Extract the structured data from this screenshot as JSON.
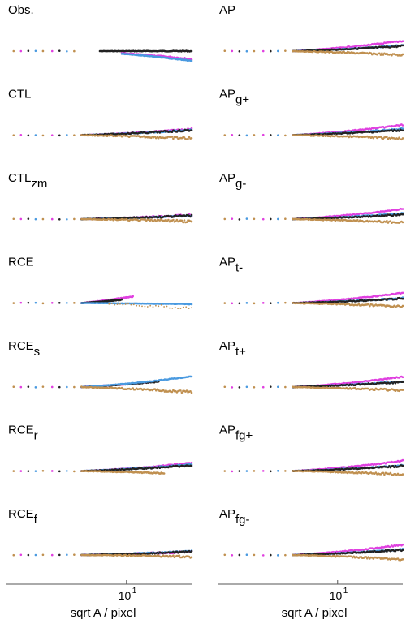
{
  "colors": {
    "black": "#222222",
    "magenta": "#e040e0",
    "blue": "#4a9ae0",
    "tan": "#c09050",
    "axis": "#555555"
  },
  "axes": {
    "xlabel": "sqrt A / pixel",
    "tick_label": "10",
    "tick_exp": "1",
    "x_scale": "log"
  },
  "chart_data": [
    {
      "type": "scatter",
      "name": "Obs.",
      "sub": "",
      "series": [
        {
          "color": "black",
          "shape": "flat",
          "slope": 0.0,
          "from": 0.5,
          "to": 1.0,
          "noise": 0.2
        },
        {
          "color": "magenta",
          "shape": "down",
          "slope": -0.7,
          "from": 0.62,
          "to": 1.0,
          "noise": 0.3,
          "bump": 1.2
        },
        {
          "color": "blue",
          "shape": "down",
          "slope": -0.85,
          "from": 0.62,
          "to": 1.0,
          "noise": 0.2
        }
      ]
    },
    {
      "type": "scatter",
      "name": "AP",
      "sub": "",
      "series": [
        {
          "color": "magenta",
          "slope": 0.9,
          "from": 0.4,
          "to": 1.0,
          "noise": 0.3
        },
        {
          "color": "blue",
          "slope": 0.5,
          "from": 0.4,
          "to": 1.0,
          "noise": 0.3
        },
        {
          "color": "black",
          "slope": 0.45,
          "from": 0.4,
          "to": 1.0,
          "noise": 0.4
        },
        {
          "color": "tan",
          "slope": -0.35,
          "from": 0.4,
          "to": 1.0,
          "noise": 0.5
        }
      ]
    },
    {
      "type": "scatter",
      "name": "CTL",
      "sub": "",
      "series": [
        {
          "color": "magenta",
          "slope": 0.55,
          "from": 0.4,
          "to": 1.0,
          "noise": 0.3
        },
        {
          "color": "blue",
          "slope": 0.45,
          "from": 0.4,
          "to": 1.0,
          "noise": 0.3
        },
        {
          "color": "black",
          "slope": 0.45,
          "from": 0.4,
          "to": 1.0,
          "noise": 0.5
        },
        {
          "color": "tan",
          "slope": -0.3,
          "from": 0.4,
          "to": 1.0,
          "noise": 0.6
        }
      ]
    },
    {
      "type": "scatter",
      "name": "AP",
      "sub": "g+",
      "series": [
        {
          "color": "magenta",
          "slope": 0.9,
          "from": 0.4,
          "to": 1.0,
          "noise": 0.3
        },
        {
          "color": "blue",
          "slope": 0.55,
          "from": 0.4,
          "to": 1.0,
          "noise": 0.3
        },
        {
          "color": "black",
          "slope": 0.45,
          "from": 0.4,
          "to": 1.0,
          "noise": 0.4
        },
        {
          "color": "tan",
          "slope": -0.3,
          "from": 0.4,
          "to": 1.0,
          "noise": 0.5
        }
      ]
    },
    {
      "type": "scatter",
      "name": "CTL",
      "sub": "zm",
      "series": [
        {
          "color": "magenta",
          "slope": 0.35,
          "from": 0.4,
          "to": 1.0,
          "noise": 0.5
        },
        {
          "color": "blue",
          "slope": 0.3,
          "from": 0.4,
          "to": 1.0,
          "noise": 0.3
        },
        {
          "color": "black",
          "slope": 0.3,
          "from": 0.4,
          "to": 1.0,
          "noise": 0.5
        },
        {
          "color": "tan",
          "slope": -0.2,
          "from": 0.4,
          "to": 1.0,
          "noise": 0.6
        }
      ]
    },
    {
      "type": "scatter",
      "name": "AP",
      "sub": "g-",
      "series": [
        {
          "color": "magenta",
          "slope": 0.9,
          "from": 0.4,
          "to": 1.0,
          "noise": 0.3
        },
        {
          "color": "blue",
          "slope": 0.5,
          "from": 0.4,
          "to": 1.0,
          "noise": 0.3
        },
        {
          "color": "black",
          "slope": 0.4,
          "from": 0.4,
          "to": 1.0,
          "noise": 0.4
        },
        {
          "color": "tan",
          "slope": -0.3,
          "from": 0.4,
          "to": 1.0,
          "noise": 0.5
        }
      ]
    },
    {
      "type": "scatter",
      "name": "RCE",
      "sub": "",
      "series": [
        {
          "color": "magenta",
          "slope": 1.6,
          "from": 0.4,
          "to": 0.68,
          "noise": 0.4
        },
        {
          "color": "black",
          "slope": 1.1,
          "from": 0.4,
          "to": 0.62,
          "noise": 0.3
        },
        {
          "color": "blue",
          "slope": -0.1,
          "from": 0.4,
          "to": 1.0,
          "noise": 0.1
        },
        {
          "color": "tan",
          "slope": -0.45,
          "from": 0.55,
          "to": 1.0,
          "noise": 0.9,
          "sparse": true
        }
      ]
    },
    {
      "type": "scatter",
      "name": "AP",
      "sub": "t-",
      "series": [
        {
          "color": "magenta",
          "slope": 0.9,
          "from": 0.4,
          "to": 1.0,
          "noise": 0.3
        },
        {
          "color": "blue",
          "slope": 0.45,
          "from": 0.4,
          "to": 1.0,
          "noise": 0.3
        },
        {
          "color": "black",
          "slope": 0.4,
          "from": 0.4,
          "to": 1.0,
          "noise": 0.4
        },
        {
          "color": "tan",
          "slope": -0.3,
          "from": 0.4,
          "to": 1.0,
          "noise": 0.5
        }
      ]
    },
    {
      "type": "scatter",
      "name": "RCE",
      "sub": "s",
      "series": [
        {
          "color": "magenta",
          "slope": 0.85,
          "from": 0.4,
          "to": 0.8,
          "noise": 0.3
        },
        {
          "color": "black",
          "slope": 0.8,
          "from": 0.4,
          "to": 0.82,
          "noise": 0.3
        },
        {
          "color": "blue",
          "slope": 0.95,
          "from": 0.4,
          "to": 1.0,
          "noise": 0.2
        },
        {
          "color": "tan",
          "slope": -0.45,
          "from": 0.4,
          "to": 1.0,
          "noise": 0.6
        }
      ]
    },
    {
      "type": "scatter",
      "name": "AP",
      "sub": "t+",
      "series": [
        {
          "color": "magenta",
          "slope": 0.9,
          "from": 0.4,
          "to": 1.0,
          "noise": 0.3
        },
        {
          "color": "blue",
          "slope": 0.5,
          "from": 0.4,
          "to": 1.0,
          "noise": 0.3
        },
        {
          "color": "black",
          "slope": 0.45,
          "from": 0.4,
          "to": 1.0,
          "noise": 0.4
        },
        {
          "color": "tan",
          "slope": -0.3,
          "from": 0.4,
          "to": 1.0,
          "noise": 0.5
        }
      ]
    },
    {
      "type": "scatter",
      "name": "RCE",
      "sub": "r",
      "series": [
        {
          "color": "magenta",
          "slope": 0.7,
          "from": 0.4,
          "to": 1.0,
          "noise": 0.3
        },
        {
          "color": "blue",
          "slope": 0.6,
          "from": 0.4,
          "to": 1.0,
          "noise": 0.3
        },
        {
          "color": "black",
          "slope": 0.5,
          "from": 0.4,
          "to": 1.0,
          "noise": 0.4
        },
        {
          "color": "tan",
          "slope": -0.3,
          "from": 0.4,
          "to": 0.85,
          "noise": 0.4
        }
      ]
    },
    {
      "type": "scatter",
      "name": "AP",
      "sub": "fg+",
      "series": [
        {
          "color": "magenta",
          "slope": 0.9,
          "from": 0.4,
          "to": 1.0,
          "noise": 0.3
        },
        {
          "color": "blue",
          "slope": 0.5,
          "from": 0.4,
          "to": 1.0,
          "noise": 0.3
        },
        {
          "color": "black",
          "slope": 0.45,
          "from": 0.4,
          "to": 1.0,
          "noise": 0.4
        },
        {
          "color": "tan",
          "slope": -0.3,
          "from": 0.4,
          "to": 1.0,
          "noise": 0.5
        }
      ]
    },
    {
      "type": "scatter",
      "name": "RCE",
      "sub": "f",
      "series": [
        {
          "color": "magenta",
          "slope": 0.3,
          "from": 0.4,
          "to": 1.0,
          "noise": 0.5
        },
        {
          "color": "blue",
          "slope": 0.35,
          "from": 0.4,
          "to": 1.0,
          "noise": 0.3
        },
        {
          "color": "black",
          "slope": 0.3,
          "from": 0.4,
          "to": 1.0,
          "noise": 0.4
        },
        {
          "color": "tan",
          "slope": -0.15,
          "from": 0.4,
          "to": 1.0,
          "noise": 0.5
        }
      ]
    },
    {
      "type": "scatter",
      "name": "AP",
      "sub": "fg-",
      "series": [
        {
          "color": "magenta",
          "slope": 0.9,
          "from": 0.4,
          "to": 1.0,
          "noise": 0.3
        },
        {
          "color": "blue",
          "slope": 0.5,
          "from": 0.4,
          "to": 1.0,
          "noise": 0.3
        },
        {
          "color": "black",
          "slope": 0.45,
          "from": 0.4,
          "to": 1.0,
          "noise": 0.4
        },
        {
          "color": "tan",
          "slope": -0.4,
          "from": 0.4,
          "to": 1.0,
          "noise": 0.5
        }
      ]
    }
  ]
}
